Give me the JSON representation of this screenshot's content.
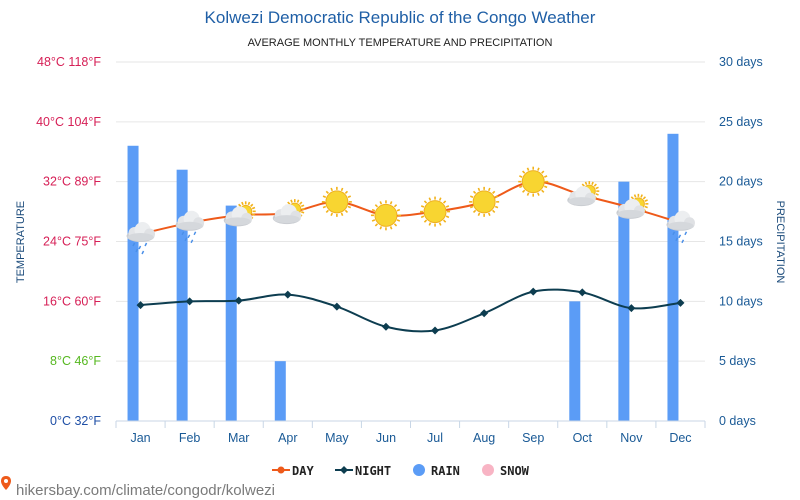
{
  "header": {
    "title": "Kolwezi Democratic Republic of the Congo Weather",
    "subtitle": "AVERAGE MONTHLY TEMPERATURE AND PRECIPITATION"
  },
  "source": "hikersbay.com/climate/congodr/kolwezi",
  "colors": {
    "day": "#ee5a1a",
    "night": "#0d3d50",
    "rain": "#5b9cf6",
    "snow": "#f8b4c4",
    "left_axis_hot": "#d61f56",
    "left_axis_mild": "#56b820",
    "left_axis_cold": "#1f4fa6"
  },
  "chart_data": {
    "type": "line",
    "title": "Kolwezi Democratic Republic of the Congo Weather",
    "subtitle": "AVERAGE MONTHLY TEMPERATURE AND PRECIPITATION",
    "categories": [
      "Jan",
      "Feb",
      "Mar",
      "Apr",
      "May",
      "Jun",
      "Jul",
      "Aug",
      "Sep",
      "Oct",
      "Nov",
      "Dec"
    ],
    "ylabel": "TEMPERATURE",
    "y2label": "PRECIPITATION",
    "ylim": [
      0,
      48
    ],
    "y2lim": [
      0,
      30
    ],
    "yticks": [
      {
        "value": 0,
        "label": "0°C 32°F",
        "tone": "cold"
      },
      {
        "value": 8,
        "label": "8°C 46°F",
        "tone": "mild"
      },
      {
        "value": 16,
        "label": "16°C 60°F",
        "tone": "hot"
      },
      {
        "value": 24,
        "label": "24°C 75°F",
        "tone": "hot"
      },
      {
        "value": 32,
        "label": "32°C 89°F",
        "tone": "hot"
      },
      {
        "value": 40,
        "label": "40°C 104°F",
        "tone": "hot"
      },
      {
        "value": 48,
        "label": "48°C 118°F",
        "tone": "hot"
      }
    ],
    "y2ticks": [
      {
        "value": 0,
        "label": "0 days"
      },
      {
        "value": 5,
        "label": "5 days"
      },
      {
        "value": 10,
        "label": "10 days"
      },
      {
        "value": 15,
        "label": "15 days"
      },
      {
        "value": 20,
        "label": "20 days"
      },
      {
        "value": 25,
        "label": "25 days"
      },
      {
        "value": 30,
        "label": "30 days"
      }
    ],
    "grid": true,
    "legend_position": "bottom",
    "series": [
      {
        "name": "DAY",
        "kind": "line",
        "axis": "left",
        "values": [
          25,
          26.5,
          27.5,
          27.8,
          29.3,
          27.5,
          28,
          29.3,
          32,
          30.2,
          28.5,
          26.5
        ]
      },
      {
        "name": "NIGHT",
        "kind": "line",
        "axis": "left",
        "values": [
          15.5,
          16,
          16.1,
          16.9,
          15.3,
          12.6,
          12.1,
          14.4,
          17.3,
          17.2,
          15.1,
          15.8
        ]
      },
      {
        "name": "RAIN",
        "kind": "bar",
        "axis": "right",
        "values": [
          23,
          21,
          18,
          5,
          0,
          0,
          0,
          0,
          0,
          10,
          20,
          24
        ]
      },
      {
        "name": "SNOW",
        "kind": "bar",
        "axis": "right",
        "values": [
          0,
          0,
          0,
          0,
          0,
          0,
          0,
          0,
          0,
          0,
          0,
          0
        ]
      }
    ],
    "weather_icons": [
      "cloud-rain",
      "cloud-rain",
      "cloud-sun",
      "cloud-sun",
      "sun",
      "sun",
      "sun",
      "sun",
      "sun",
      "cloud-sun",
      "cloud-sun",
      "cloud-rain"
    ]
  }
}
